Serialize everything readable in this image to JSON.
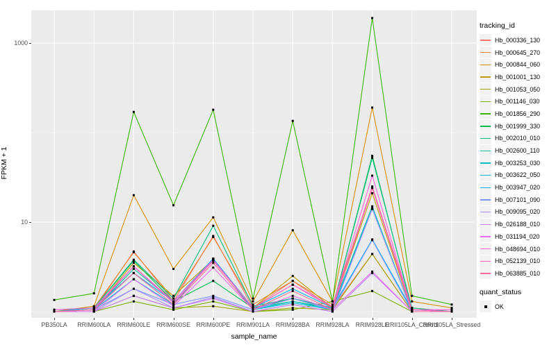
{
  "figure": {
    "background": "#ffffff",
    "panel_background": "#EBEBEB",
    "gridline_color": "#FFFFFF",
    "point_color": "#000000",
    "tick_text_color": "#4D4D4D"
  },
  "legend": {
    "title": "tracking_id",
    "quant_title": "quant_status",
    "quant_items": [
      {
        "label": "OK",
        "marker": "black-square"
      }
    ]
  },
  "chart_data": {
    "type": "line",
    "title": "",
    "xlabel": "sample_name",
    "ylabel": "FPKM + 1",
    "y_scale": "log10",
    "y_major_ticks": [
      {
        "value": 10,
        "label": "10"
      },
      {
        "value": 1000,
        "label": "1000"
      }
    ],
    "y_minor_gridlines": [
      1,
      100
    ],
    "ylim": [
      0.85,
      2400
    ],
    "grid": true,
    "legend_position": "right",
    "marker": "black-square",
    "categories": [
      "PB350LA",
      "RRIM600LA",
      "RRIM600LE",
      "RRIM600SE",
      "RRIM600PE",
      "RRIM901LA",
      "RRIM928BA",
      "RRIM928LA",
      "RRIM928LE",
      "RRII105LA_Control",
      "RRII105LA_Stressed"
    ],
    "series": [
      {
        "name": "Hb_000336_130",
        "color": "#F8766D",
        "values": [
          1.0,
          1.05,
          4.7,
          1.3,
          7.0,
          1.1,
          2.2,
          1.1,
          4.4,
          1.0,
          1.0
        ]
      },
      {
        "name": "Hb_000645_270",
        "color": "#EA8331",
        "values": [
          1.0,
          1.1,
          4.6,
          1.4,
          6.8,
          1.2,
          2.2,
          1.2,
          24,
          1.1,
          1.0
        ]
      },
      {
        "name": "Hb_000844_060",
        "color": "#D89000",
        "values": [
          1.0,
          1.15,
          20,
          3.0,
          11.3,
          1.3,
          8.1,
          1.3,
          190,
          1.3,
          1.1
        ]
      },
      {
        "name": "Hb_001001_130",
        "color": "#C09B00",
        "values": [
          1.0,
          1.05,
          3.5,
          1.5,
          3.8,
          1.1,
          2.5,
          1.1,
          21,
          1.0,
          1.0
        ]
      },
      {
        "name": "Hb_001053_050",
        "color": "#A3A500",
        "values": [
          1.0,
          1.0,
          1.5,
          1.1,
          1.15,
          1.0,
          1.1,
          1.05,
          4.4,
          1.0,
          1.0
        ]
      },
      {
        "name": "Hb_001146_030",
        "color": "#7CAE00",
        "values": [
          1.0,
          1.0,
          1.3,
          1.05,
          1.3,
          1.0,
          1.05,
          1.3,
          1.7,
          1.0,
          1.0
        ]
      },
      {
        "name": "Hb_001856_290",
        "color": "#39B600",
        "values": [
          1.35,
          1.6,
          170,
          15.4,
          180,
          1.4,
          135,
          1.3,
          1900,
          1.5,
          1.2
        ]
      },
      {
        "name": "Hb_001999_330",
        "color": "#00BB4E",
        "values": [
          1.05,
          1.1,
          3.7,
          1.3,
          2.2,
          1.1,
          1.4,
          1.1,
          55,
          1.05,
          1.0
        ]
      },
      {
        "name": "Hb_002010_010",
        "color": "#00BF7D",
        "values": [
          1.0,
          1.1,
          3.8,
          1.4,
          9.1,
          1.15,
          1.4,
          1.1,
          52,
          1.1,
          1.0
        ]
      },
      {
        "name": "Hb_002600_110",
        "color": "#00C1A3",
        "values": [
          1.0,
          1.05,
          3.0,
          1.3,
          3.9,
          1.1,
          1.3,
          1.1,
          15,
          1.0,
          1.0
        ]
      },
      {
        "name": "Hb_003253_030",
        "color": "#00BFC4",
        "values": [
          1.0,
          1.05,
          2.7,
          1.2,
          3.9,
          1.05,
          1.3,
          1.05,
          14,
          1.0,
          1.0
        ]
      },
      {
        "name": "Hb_003622_050",
        "color": "#00BAE0",
        "values": [
          1.0,
          1.05,
          2.3,
          1.2,
          3.9,
          1.05,
          1.25,
          1.05,
          14.5,
          1.0,
          1.0
        ]
      },
      {
        "name": "Hb_003947_020",
        "color": "#00B0F6",
        "values": [
          1.0,
          1.1,
          2.7,
          1.3,
          3.9,
          1.1,
          1.8,
          1.1,
          6.4,
          1.05,
          1.0
        ]
      },
      {
        "name": "Hb_007101_090",
        "color": "#7C96FF",
        "values": [
          1.0,
          1.05,
          1.8,
          1.2,
          1.5,
          1.05,
          1.4,
          1.05,
          6.3,
          1.0,
          1.0
        ]
      },
      {
        "name": "Hb_009095_020",
        "color": "#A98CFF",
        "values": [
          1.0,
          1.0,
          1.8,
          1.1,
          1.45,
          1.0,
          1.2,
          1.0,
          14,
          1.0,
          1.0
        ]
      },
      {
        "name": "Hb_026188_010",
        "color": "#C77CFF",
        "values": [
          1.0,
          1.0,
          1.5,
          1.1,
          1.4,
          1.0,
          1.2,
          1.0,
          2.7,
          1.0,
          1.0
        ]
      },
      {
        "name": "Hb_031194_020",
        "color": "#E76BF3",
        "values": [
          1.0,
          1.0,
          2.3,
          1.15,
          3.1,
          1.05,
          1.5,
          1.05,
          2.8,
          1.0,
          1.0
        ]
      },
      {
        "name": "Hb_048694_010",
        "color": "#FA62DB",
        "values": [
          1.05,
          1.1,
          3.2,
          1.3,
          3.8,
          1.1,
          2.0,
          1.15,
          33,
          1.05,
          1.05
        ]
      },
      {
        "name": "Hb_052139_010",
        "color": "#FF62BC",
        "values": [
          1.0,
          1.05,
          3.2,
          1.25,
          3.7,
          1.1,
          2.0,
          1.1,
          25,
          1.05,
          1.0
        ]
      },
      {
        "name": "Hb_063885_010",
        "color": "#FF6A98",
        "values": [
          1.0,
          1.05,
          2.7,
          1.2,
          3.5,
          1.05,
          1.7,
          1.05,
          24,
          1.0,
          1.0
        ]
      }
    ]
  }
}
